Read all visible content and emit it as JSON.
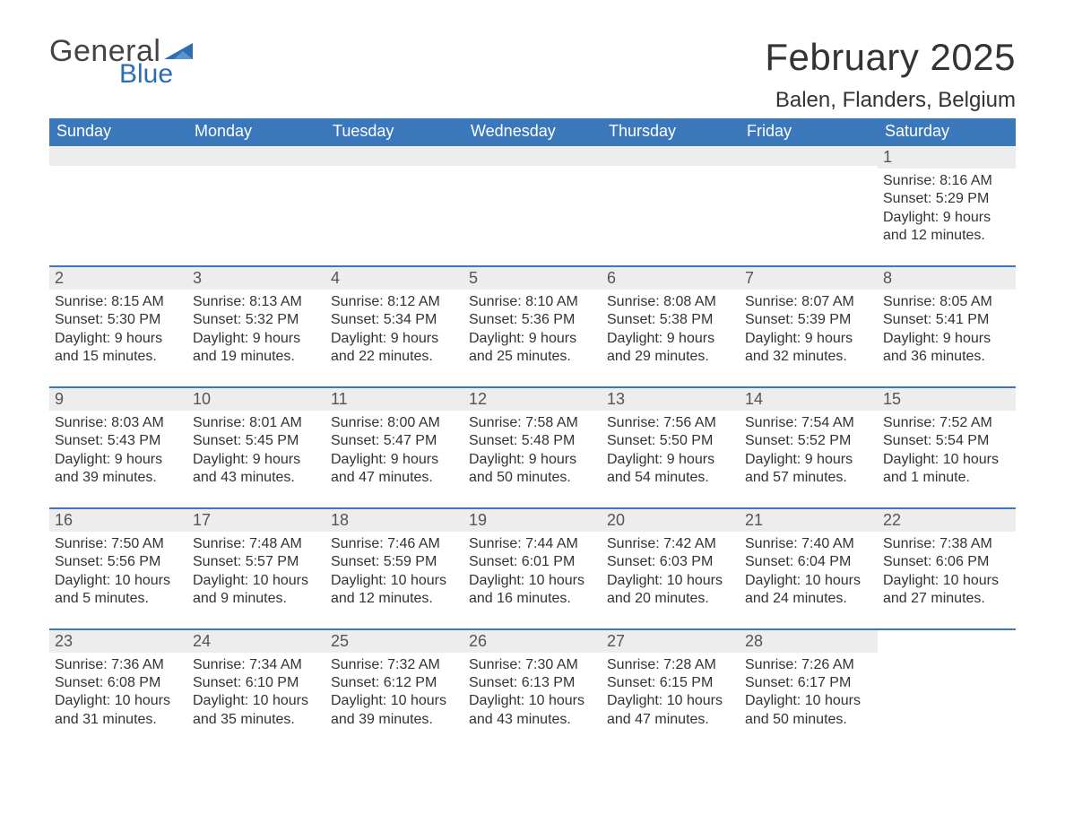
{
  "brand": {
    "word1": "General",
    "word2": "Blue",
    "text_color": "#444444",
    "accent_color": "#2f6db2"
  },
  "header": {
    "month_title": "February 2025",
    "location": "Balen, Flanders, Belgium"
  },
  "styling": {
    "page_background": "#ffffff",
    "header_bar_color": "#3a78bb",
    "header_bar_text_color": "#ffffff",
    "daynum_band_color": "#ededed",
    "daynum_text_color": "#555555",
    "body_text_color": "#333333",
    "week_divider_color": "#3a78bb",
    "title_fontsize": 42,
    "location_fontsize": 24,
    "dayheader_fontsize": 18,
    "body_fontsize": 16,
    "cell_width_pct": 14.2857
  },
  "day_headers": [
    "Sunday",
    "Monday",
    "Tuesday",
    "Wednesday",
    "Thursday",
    "Friday",
    "Saturday"
  ],
  "weeks": [
    [
      {
        "empty": true
      },
      {
        "empty": true
      },
      {
        "empty": true
      },
      {
        "empty": true
      },
      {
        "empty": true
      },
      {
        "empty": true
      },
      {
        "day": "1",
        "sunrise": "Sunrise: 8:16 AM",
        "sunset": "Sunset: 5:29 PM",
        "daylight1": "Daylight: 9 hours",
        "daylight2": "and 12 minutes."
      }
    ],
    [
      {
        "day": "2",
        "sunrise": "Sunrise: 8:15 AM",
        "sunset": "Sunset: 5:30 PM",
        "daylight1": "Daylight: 9 hours",
        "daylight2": "and 15 minutes."
      },
      {
        "day": "3",
        "sunrise": "Sunrise: 8:13 AM",
        "sunset": "Sunset: 5:32 PM",
        "daylight1": "Daylight: 9 hours",
        "daylight2": "and 19 minutes."
      },
      {
        "day": "4",
        "sunrise": "Sunrise: 8:12 AM",
        "sunset": "Sunset: 5:34 PM",
        "daylight1": "Daylight: 9 hours",
        "daylight2": "and 22 minutes."
      },
      {
        "day": "5",
        "sunrise": "Sunrise: 8:10 AM",
        "sunset": "Sunset: 5:36 PM",
        "daylight1": "Daylight: 9 hours",
        "daylight2": "and 25 minutes."
      },
      {
        "day": "6",
        "sunrise": "Sunrise: 8:08 AM",
        "sunset": "Sunset: 5:38 PM",
        "daylight1": "Daylight: 9 hours",
        "daylight2": "and 29 minutes."
      },
      {
        "day": "7",
        "sunrise": "Sunrise: 8:07 AM",
        "sunset": "Sunset: 5:39 PM",
        "daylight1": "Daylight: 9 hours",
        "daylight2": "and 32 minutes."
      },
      {
        "day": "8",
        "sunrise": "Sunrise: 8:05 AM",
        "sunset": "Sunset: 5:41 PM",
        "daylight1": "Daylight: 9 hours",
        "daylight2": "and 36 minutes."
      }
    ],
    [
      {
        "day": "9",
        "sunrise": "Sunrise: 8:03 AM",
        "sunset": "Sunset: 5:43 PM",
        "daylight1": "Daylight: 9 hours",
        "daylight2": "and 39 minutes."
      },
      {
        "day": "10",
        "sunrise": "Sunrise: 8:01 AM",
        "sunset": "Sunset: 5:45 PM",
        "daylight1": "Daylight: 9 hours",
        "daylight2": "and 43 minutes."
      },
      {
        "day": "11",
        "sunrise": "Sunrise: 8:00 AM",
        "sunset": "Sunset: 5:47 PM",
        "daylight1": "Daylight: 9 hours",
        "daylight2": "and 47 minutes."
      },
      {
        "day": "12",
        "sunrise": "Sunrise: 7:58 AM",
        "sunset": "Sunset: 5:48 PM",
        "daylight1": "Daylight: 9 hours",
        "daylight2": "and 50 minutes."
      },
      {
        "day": "13",
        "sunrise": "Sunrise: 7:56 AM",
        "sunset": "Sunset: 5:50 PM",
        "daylight1": "Daylight: 9 hours",
        "daylight2": "and 54 minutes."
      },
      {
        "day": "14",
        "sunrise": "Sunrise: 7:54 AM",
        "sunset": "Sunset: 5:52 PM",
        "daylight1": "Daylight: 9 hours",
        "daylight2": "and 57 minutes."
      },
      {
        "day": "15",
        "sunrise": "Sunrise: 7:52 AM",
        "sunset": "Sunset: 5:54 PM",
        "daylight1": "Daylight: 10 hours",
        "daylight2": "and 1 minute."
      }
    ],
    [
      {
        "day": "16",
        "sunrise": "Sunrise: 7:50 AM",
        "sunset": "Sunset: 5:56 PM",
        "daylight1": "Daylight: 10 hours",
        "daylight2": "and 5 minutes."
      },
      {
        "day": "17",
        "sunrise": "Sunrise: 7:48 AM",
        "sunset": "Sunset: 5:57 PM",
        "daylight1": "Daylight: 10 hours",
        "daylight2": "and 9 minutes."
      },
      {
        "day": "18",
        "sunrise": "Sunrise: 7:46 AM",
        "sunset": "Sunset: 5:59 PM",
        "daylight1": "Daylight: 10 hours",
        "daylight2": "and 12 minutes."
      },
      {
        "day": "19",
        "sunrise": "Sunrise: 7:44 AM",
        "sunset": "Sunset: 6:01 PM",
        "daylight1": "Daylight: 10 hours",
        "daylight2": "and 16 minutes."
      },
      {
        "day": "20",
        "sunrise": "Sunrise: 7:42 AM",
        "sunset": "Sunset: 6:03 PM",
        "daylight1": "Daylight: 10 hours",
        "daylight2": "and 20 minutes."
      },
      {
        "day": "21",
        "sunrise": "Sunrise: 7:40 AM",
        "sunset": "Sunset: 6:04 PM",
        "daylight1": "Daylight: 10 hours",
        "daylight2": "and 24 minutes."
      },
      {
        "day": "22",
        "sunrise": "Sunrise: 7:38 AM",
        "sunset": "Sunset: 6:06 PM",
        "daylight1": "Daylight: 10 hours",
        "daylight2": "and 27 minutes."
      }
    ],
    [
      {
        "day": "23",
        "sunrise": "Sunrise: 7:36 AM",
        "sunset": "Sunset: 6:08 PM",
        "daylight1": "Daylight: 10 hours",
        "daylight2": "and 31 minutes."
      },
      {
        "day": "24",
        "sunrise": "Sunrise: 7:34 AM",
        "sunset": "Sunset: 6:10 PM",
        "daylight1": "Daylight: 10 hours",
        "daylight2": "and 35 minutes."
      },
      {
        "day": "25",
        "sunrise": "Sunrise: 7:32 AM",
        "sunset": "Sunset: 6:12 PM",
        "daylight1": "Daylight: 10 hours",
        "daylight2": "and 39 minutes."
      },
      {
        "day": "26",
        "sunrise": "Sunrise: 7:30 AM",
        "sunset": "Sunset: 6:13 PM",
        "daylight1": "Daylight: 10 hours",
        "daylight2": "and 43 minutes."
      },
      {
        "day": "27",
        "sunrise": "Sunrise: 7:28 AM",
        "sunset": "Sunset: 6:15 PM",
        "daylight1": "Daylight: 10 hours",
        "daylight2": "and 47 minutes."
      },
      {
        "day": "28",
        "sunrise": "Sunrise: 7:26 AM",
        "sunset": "Sunset: 6:17 PM",
        "daylight1": "Daylight: 10 hours",
        "daylight2": "and 50 minutes."
      },
      {
        "empty": true,
        "noband": true
      }
    ]
  ]
}
